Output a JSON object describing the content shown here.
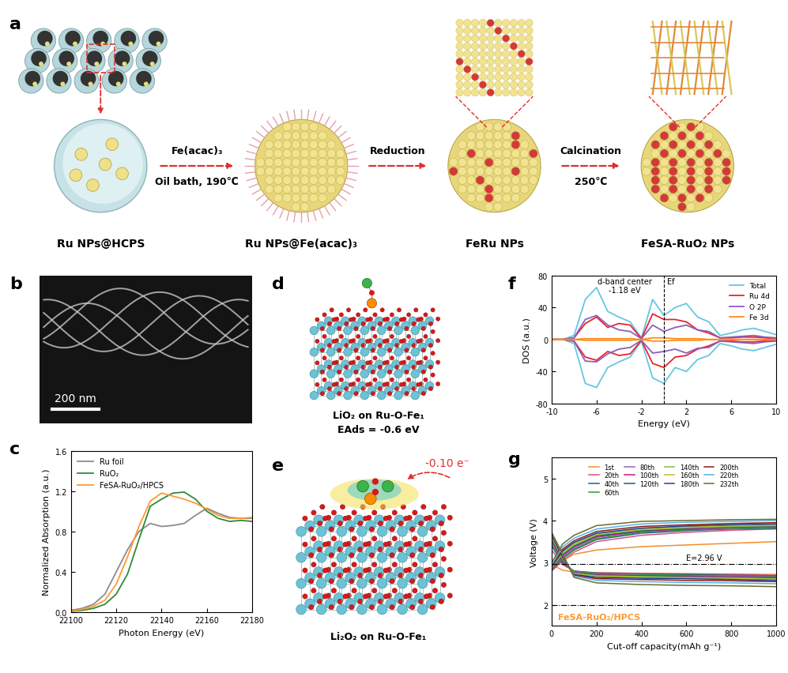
{
  "scheme": {
    "label": "a",
    "steps": [
      "Ru NPs@HCPS",
      "Ru NPs@Fe(acac)₃",
      "FeRu NPs",
      "FeSA-RuO₂ NPs"
    ],
    "arrows": [
      {
        "above": "Fe(acac)₃",
        "below": "Oil bath, 190℃"
      },
      {
        "above": "Reduction"
      },
      {
        "above": "Calcination",
        "below": "250℃"
      }
    ]
  },
  "micrograph": {
    "label": "b",
    "scale_bar": "200 nm"
  },
  "structures": [
    {
      "label": "d",
      "caption": "LiO₂ on Ru-O-Fe₁",
      "annotation": "EAds = -0.6 eV"
    },
    {
      "label": "e",
      "caption": "Li₂O₂ on Ru-O-Fe₁",
      "annotation": "-0.10 e⁻"
    }
  ],
  "chart_data": [
    {
      "label": "c",
      "type": "line",
      "x_label": "Photon Energy (eV)",
      "y_label": "Normalized Absorption (a.u.)",
      "x": [
        22100,
        22105,
        22110,
        22115,
        22120,
        22125,
        22130,
        22135,
        22140,
        22145,
        22150,
        22155,
        22160,
        22165,
        22170,
        22175,
        22180
      ],
      "xlim": [
        22100,
        22180
      ],
      "xticks": [
        22100,
        22120,
        22140,
        22160,
        22180
      ],
      "ylim": [
        0.0,
        1.6
      ],
      "yticks": [
        0.0,
        0.4,
        0.8,
        1.2,
        1.6
      ],
      "legend": "upper left",
      "series": [
        {
          "name": "Ru foil",
          "color": "#8c8c8c",
          "values": [
            0.02,
            0.04,
            0.08,
            0.18,
            0.4,
            0.62,
            0.8,
            0.88,
            0.85,
            0.86,
            0.88,
            0.96,
            1.03,
            0.98,
            0.94,
            0.93,
            0.93
          ]
        },
        {
          "name": "RuO₂",
          "color": "#2e8b3a",
          "values": [
            0.01,
            0.02,
            0.04,
            0.08,
            0.18,
            0.38,
            0.72,
            1.05,
            1.12,
            1.18,
            1.19,
            1.12,
            1.0,
            0.93,
            0.9,
            0.91,
            0.9
          ]
        },
        {
          "name": "FeSA-RuO₂/HPCS",
          "color": "#ff9933",
          "values": [
            0.01,
            0.03,
            0.06,
            0.12,
            0.28,
            0.55,
            0.85,
            1.1,
            1.18,
            1.15,
            1.12,
            1.08,
            1.02,
            0.96,
            0.93,
            0.93,
            0.94
          ]
        }
      ]
    },
    {
      "label": "f",
      "type": "line",
      "x_label": "Energy (eV)",
      "y_label": "DOS (a.u.)",
      "x": [
        -10,
        -9,
        -8,
        -7,
        -6,
        -5,
        -4,
        -3,
        -2,
        -1,
        0,
        1,
        2,
        3,
        4,
        5,
        6,
        7,
        8,
        9,
        10
      ],
      "xlim": [
        -10,
        10
      ],
      "xticks": [
        -10,
        -6,
        -2,
        2,
        6,
        10
      ],
      "ylim": [
        -80,
        80
      ],
      "yticks": [
        -80,
        -40,
        0,
        40,
        80
      ],
      "legend": "upper right",
      "fermi_level": 0,
      "annotations": [
        "d-band center",
        "-1.18 eV",
        "Ef"
      ],
      "series": [
        {
          "name": "Total",
          "color": "#66c7e0",
          "values": [
            0,
            0,
            5,
            50,
            65,
            35,
            28,
            22,
            2,
            50,
            30,
            40,
            45,
            28,
            22,
            5,
            8,
            12,
            14,
            10,
            6
          ],
          "spin_down_values": [
            0,
            0,
            -5,
            -55,
            -60,
            -35,
            -28,
            -22,
            -2,
            -48,
            -55,
            -35,
            -40,
            -25,
            -20,
            -5,
            -8,
            -12,
            -14,
            -10,
            -6
          ]
        },
        {
          "name": "Ru 4d",
          "color": "#e8242a",
          "values": [
            0,
            0,
            2,
            20,
            28,
            15,
            20,
            18,
            1,
            32,
            25,
            25,
            22,
            12,
            8,
            2,
            2,
            3,
            3,
            2,
            1
          ],
          "spin_down_values": [
            0,
            0,
            -2,
            -22,
            -26,
            -15,
            -20,
            -18,
            -1,
            -30,
            -35,
            -22,
            -20,
            -12,
            -8,
            -2,
            -2,
            -3,
            -3,
            -2,
            -1
          ]
        },
        {
          "name": "O 2P",
          "color": "#8a5fbf",
          "values": [
            0,
            0,
            2,
            25,
            30,
            18,
            12,
            10,
            1,
            18,
            10,
            15,
            18,
            12,
            10,
            2,
            3,
            4,
            5,
            3,
            2
          ],
          "spin_down_values": [
            0,
            0,
            -2,
            -27,
            -28,
            -18,
            -12,
            -10,
            -1,
            -17,
            -15,
            -12,
            -17,
            -11,
            -10,
            -2,
            -3,
            -4,
            -5,
            -3,
            -2
          ]
        },
        {
          "name": "Fe 3d",
          "color": "#ff8c1a",
          "values": [
            0,
            0,
            0,
            1,
            1,
            1,
            1,
            1,
            0,
            2,
            2,
            1,
            1,
            1,
            0,
            0,
            0,
            0,
            0,
            0,
            0
          ],
          "spin_down_values": [
            0,
            0,
            0,
            -1,
            -1,
            -1,
            -1,
            -1,
            0,
            -2,
            -2,
            -1,
            -1,
            -1,
            0,
            0,
            0,
            0,
            0,
            0,
            0
          ]
        }
      ]
    },
    {
      "label": "g",
      "type": "line",
      "x_label": "Cut-off capacity(mAh g⁻¹)",
      "y_label": "Voltage (V)",
      "x": [
        0,
        50,
        100,
        200,
        400,
        600,
        800,
        1000
      ],
      "xlim": [
        0,
        1000
      ],
      "xticks": [
        0,
        200,
        400,
        600,
        800,
        1000
      ],
      "ylim": [
        1.5,
        5.5
      ],
      "yticks": [
        2,
        3,
        4,
        5
      ],
      "legend": "upper center",
      "reference_lines": [
        {
          "value": 2.96,
          "label": "E=2.96 V"
        },
        {
          "value": 2
        }
      ],
      "annotation": "FeSA-RuO₂/HPCS",
      "series": [
        {
          "name": "1st",
          "color": "#f28e2b",
          "discharge": [
            2.95,
            2.82,
            2.78,
            2.76,
            2.75,
            2.74,
            2.73,
            2.72
          ],
          "charge": [
            2.85,
            3.05,
            3.2,
            3.3,
            3.38,
            3.42,
            3.46,
            3.5
          ]
        },
        {
          "name": "20th",
          "color": "#d45087",
          "discharge": [
            3.3,
            2.95,
            2.8,
            2.76,
            2.74,
            2.73,
            2.72,
            2.7
          ],
          "charge": [
            2.8,
            3.05,
            3.25,
            3.5,
            3.65,
            3.72,
            3.77,
            3.8
          ]
        },
        {
          "name": "40th",
          "color": "#1f5f8b",
          "discharge": [
            3.4,
            2.98,
            2.8,
            2.75,
            2.73,
            2.72,
            2.7,
            2.69
          ],
          "charge": [
            2.82,
            3.1,
            3.3,
            3.55,
            3.7,
            3.76,
            3.8,
            3.82
          ]
        },
        {
          "name": "60th",
          "color": "#2ca02c",
          "discharge": [
            3.45,
            3.0,
            2.8,
            2.74,
            2.72,
            2.7,
            2.69,
            2.68
          ],
          "charge": [
            2.83,
            3.12,
            3.32,
            3.57,
            3.72,
            3.78,
            3.81,
            3.84
          ]
        },
        {
          "name": "80th",
          "color": "#9467bd",
          "discharge": [
            3.5,
            3.0,
            2.78,
            2.72,
            2.7,
            2.69,
            2.68,
            2.66
          ],
          "charge": [
            2.84,
            3.15,
            3.35,
            3.6,
            3.74,
            3.8,
            3.83,
            3.85
          ]
        },
        {
          "name": "100th",
          "color": "#c71585",
          "discharge": [
            3.55,
            3.02,
            2.77,
            2.71,
            2.69,
            2.68,
            2.66,
            2.65
          ],
          "charge": [
            2.85,
            3.18,
            3.38,
            3.62,
            3.75,
            3.8,
            3.84,
            3.86
          ]
        },
        {
          "name": "120th",
          "color": "#17606e",
          "discharge": [
            3.58,
            3.05,
            2.76,
            2.7,
            2.68,
            2.66,
            2.65,
            2.64
          ],
          "charge": [
            2.86,
            3.2,
            3.4,
            3.64,
            3.76,
            3.82,
            3.85,
            3.87
          ]
        },
        {
          "name": "140th",
          "color": "#7cc242",
          "discharge": [
            3.6,
            3.08,
            2.75,
            2.69,
            2.67,
            2.65,
            2.64,
            2.62
          ],
          "charge": [
            2.87,
            3.22,
            3.42,
            3.66,
            3.78,
            3.83,
            3.86,
            3.88
          ]
        },
        {
          "name": "160th",
          "color": "#bcbd22",
          "discharge": [
            3.62,
            3.1,
            2.74,
            2.67,
            2.65,
            2.64,
            2.62,
            2.6
          ],
          "charge": [
            2.88,
            3.25,
            3.45,
            3.68,
            3.8,
            3.85,
            3.88,
            3.9
          ]
        },
        {
          "name": "180th",
          "color": "#1f3c99",
          "discharge": [
            3.65,
            3.12,
            2.72,
            2.65,
            2.63,
            2.62,
            2.6,
            2.58
          ],
          "charge": [
            2.9,
            3.28,
            3.48,
            3.7,
            3.82,
            3.87,
            3.9,
            3.92
          ]
        },
        {
          "name": "200th",
          "color": "#8b1a1a",
          "discharge": [
            3.68,
            3.15,
            2.7,
            2.62,
            2.6,
            2.58,
            2.57,
            2.55
          ],
          "charge": [
            2.92,
            3.32,
            3.52,
            3.74,
            3.86,
            3.9,
            3.93,
            3.95
          ]
        },
        {
          "name": "220th",
          "color": "#4fb3e8",
          "discharge": [
            3.7,
            3.18,
            2.68,
            2.58,
            2.55,
            2.53,
            2.52,
            2.5
          ],
          "charge": [
            2.95,
            3.38,
            3.58,
            3.8,
            3.92,
            3.96,
            3.98,
            4.0
          ]
        },
        {
          "name": "232th",
          "color": "#6b6b2a",
          "discharge": [
            3.72,
            3.2,
            2.65,
            2.52,
            2.48,
            2.46,
            2.45,
            2.43
          ],
          "charge": [
            3.0,
            3.45,
            3.65,
            3.88,
            3.98,
            4.0,
            4.02,
            4.03
          ]
        }
      ]
    }
  ]
}
